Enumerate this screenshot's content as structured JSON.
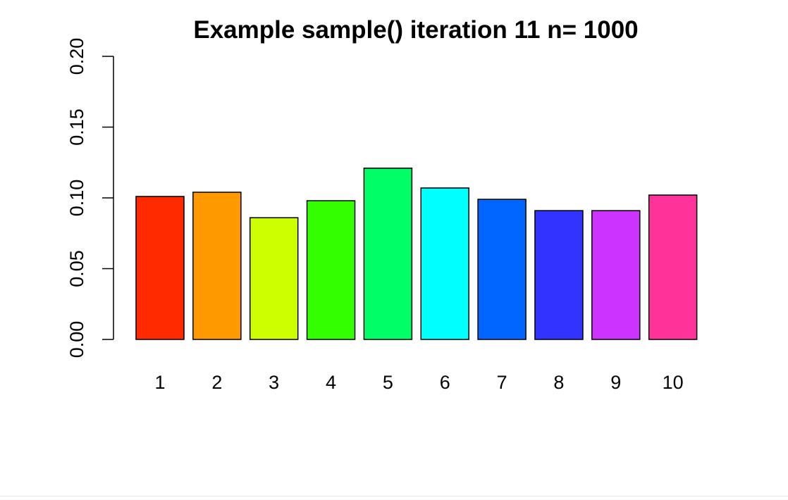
{
  "chart_data": {
    "type": "bar",
    "title": "Example sample() iteration 11 n= 1000",
    "xlabel": "",
    "ylabel": "",
    "categories": [
      "1",
      "2",
      "3",
      "4",
      "5",
      "6",
      "7",
      "8",
      "9",
      "10"
    ],
    "values": [
      0.101,
      0.104,
      0.086,
      0.098,
      0.121,
      0.107,
      0.099,
      0.091,
      0.091,
      0.102
    ],
    "colors": [
      "#ff2a00",
      "#ff9900",
      "#ccff00",
      "#33ff00",
      "#00ff66",
      "#00ffff",
      "#0066ff",
      "#3333ff",
      "#cc33ff",
      "#ff3399"
    ],
    "ylim": [
      0,
      0.2
    ],
    "yticks": [
      "0.00",
      "0.05",
      "0.10",
      "0.15",
      "0.20"
    ],
    "grid": false,
    "legend": "none"
  }
}
